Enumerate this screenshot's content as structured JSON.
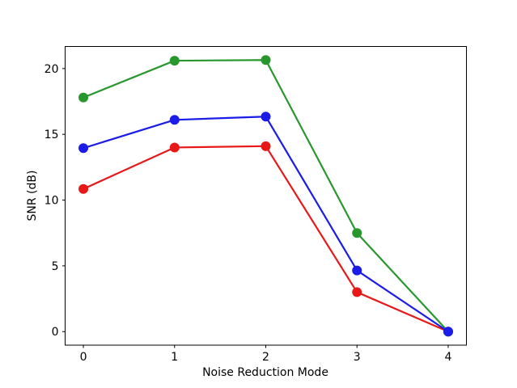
{
  "figure": {
    "background": "#ffffff",
    "axis_color": "#000000",
    "text_color": "#000000"
  },
  "chart_data": {
    "type": "line",
    "xlabel": "Noise Reduction Mode",
    "ylabel": "SNR (dB)",
    "x": [
      0,
      1,
      2,
      3,
      4
    ],
    "xticks": [
      0,
      1,
      2,
      3,
      4
    ],
    "xtick_labels": [
      "0",
      "1",
      "2",
      "3",
      "4"
    ],
    "yticks": [
      0,
      5,
      10,
      15,
      20
    ],
    "ytick_labels": [
      "0",
      "5",
      "10",
      "15",
      "20"
    ],
    "xlim": [
      -0.2,
      4.2
    ],
    "ylim": [
      -1.03,
      21.68
    ],
    "grid": false,
    "legend": "none",
    "marker": "circle",
    "series": [
      {
        "name": "red-series",
        "color": "#e81818",
        "values": [
          10.85,
          14.0,
          14.1,
          3.0,
          0.0
        ]
      },
      {
        "name": "green-series",
        "color": "#28982e",
        "values": [
          17.8,
          20.6,
          20.65,
          7.5,
          0.0
        ]
      },
      {
        "name": "blue-series",
        "color": "#1c1ce8",
        "values": [
          13.95,
          16.1,
          16.35,
          4.65,
          0.0
        ]
      }
    ]
  }
}
